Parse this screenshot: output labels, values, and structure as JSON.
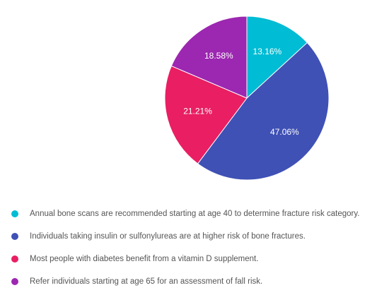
{
  "chart_data": {
    "type": "pie",
    "start_angle_deg": 0,
    "direction": "clockwise",
    "slices": [
      {
        "label": "Annual bone scans are recommended starting at age 40 to determine fracture risk category.",
        "value": 13.16,
        "display": "13.16%",
        "color": "#00bcd4"
      },
      {
        "label": "Individuals taking insulin or sulfonylureas are at higher risk of bone fractures.",
        "value": 47.06,
        "display": "47.06%",
        "color": "#3f51b5"
      },
      {
        "label": "Most people with diabetes benefit from a vitamin D supplement.",
        "value": 21.21,
        "display": "21.21%",
        "color": "#e91e63"
      },
      {
        "label": "Refer individuals starting at age 65 for an assessment of fall risk.",
        "value": 18.58,
        "display": "18.58%",
        "color": "#9c27b0"
      }
    ],
    "legend_position": "bottom"
  }
}
